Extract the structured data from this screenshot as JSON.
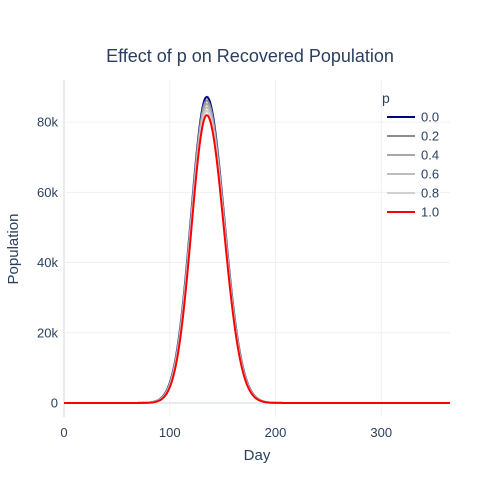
{
  "chart_data": {
    "type": "line",
    "title": "Effect of p on Recovered Population",
    "xlabel": "Day",
    "ylabel": "Population",
    "xlim": [
      0,
      365
    ],
    "ylim": [
      -4000,
      92000
    ],
    "x_ticks": [
      0,
      100,
      200,
      300
    ],
    "x_tick_labels": [
      "0",
      "100",
      "200",
      "300"
    ],
    "y_ticks": [
      0,
      20000,
      40000,
      60000,
      80000
    ],
    "y_tick_labels": [
      "0",
      "20k",
      "40k",
      "60k",
      "80k"
    ],
    "grid": true,
    "legend": {
      "title": "p",
      "placement": "top-right"
    },
    "peak_day": 135,
    "series": [
      {
        "name": "0.0",
        "color": "#00008b",
        "peak": 87200
      },
      {
        "name": "0.2",
        "color": "#8c8c8c",
        "peak": 86200
      },
      {
        "name": "0.4",
        "color": "#a8a8a8",
        "peak": 85200
      },
      {
        "name": "0.6",
        "color": "#bdbdbd",
        "peak": 84200
      },
      {
        "name": "0.8",
        "color": "#d0d0d0",
        "peak": 83200
      },
      {
        "name": "1.0",
        "color": "#ff0000",
        "peak": 82000
      }
    ]
  }
}
